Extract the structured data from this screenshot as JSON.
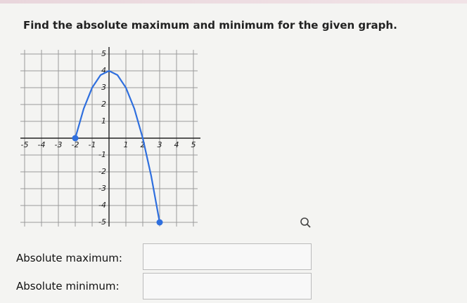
{
  "question": "Find the absolute maximum and minimum for the given graph.",
  "chart_data": {
    "type": "line",
    "x": [
      -2,
      -1.5,
      -1,
      -0.5,
      0,
      0.5,
      1,
      1.5,
      2,
      2.5,
      3
    ],
    "series": [
      {
        "color": "#2f6fde",
        "values": [
          0,
          1.75,
          3,
          3.75,
          4,
          3.75,
          3,
          1.75,
          0,
          -2.25,
          -5
        ]
      }
    ],
    "xlim": [
      -5.25,
      5.25
    ],
    "ylim": [
      -5.25,
      5.25
    ],
    "xticks": [
      -5,
      -4,
      -3,
      -2,
      -1,
      1,
      2,
      3,
      4,
      5
    ],
    "yticks": [
      -5,
      -4,
      -3,
      -2,
      -1,
      1,
      2,
      3,
      4,
      5
    ],
    "grid": true
  },
  "answers": [
    "Absolute maximum:",
    "Absolute minimum:"
  ]
}
